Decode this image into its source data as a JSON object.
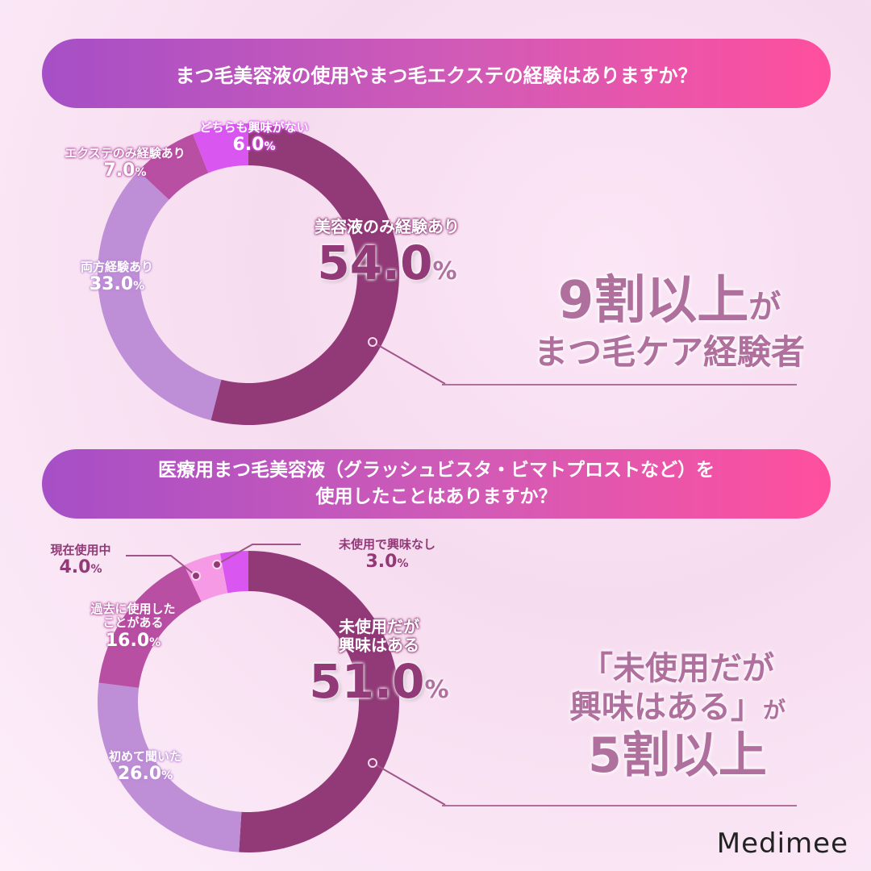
{
  "colors": {
    "dark": "#923A78",
    "light_purple": "#BE8ED6",
    "mid": "#B84FA3",
    "bright": "#D957F0",
    "pink": "#F79AE6",
    "banner_start": "#A64FC6",
    "banner_end": "#FF4F9E",
    "callout": "#B0709E"
  },
  "chart_data": [
    {
      "type": "pie",
      "donut": true,
      "title": "まつ毛美容液の使用やまつ毛エクステの経験はありますか？",
      "categories": [
        "美容液のみ経験あり",
        "両方経験あり",
        "エクステのみ経験あり",
        "どちらも興味がない"
      ],
      "values": [
        54.0,
        33.0,
        7.0,
        6.0
      ],
      "value_labels": [
        "54.0",
        "33.0",
        "7.0",
        "6.0"
      ],
      "unit": "%",
      "colors": [
        "#923A78",
        "#BE8ED6",
        "#B84FA3",
        "#D957F0"
      ]
    },
    {
      "type": "pie",
      "donut": true,
      "title_lines": [
        "医療用まつ毛美容液（グラッシュビスタ・ビマトプロストなど）を",
        "使用したことはありますか？"
      ],
      "categories": [
        "未使用だが興味はある",
        "初めて聞いた",
        "過去に使用したことがある",
        "現在使用中",
        "未使用で興味なし"
      ],
      "label_lines": [
        [
          "未使用だが",
          "興味はある"
        ],
        [
          "初めて聞いた"
        ],
        [
          "過去に使用した",
          "ことがある"
        ],
        [
          "現在使用中"
        ],
        [
          "未使用で興味なし"
        ]
      ],
      "values": [
        51.0,
        26.0,
        16.0,
        4.0,
        3.0
      ],
      "value_labels": [
        "51.0",
        "26.0",
        "16.0",
        "4.0",
        "3.0"
      ],
      "unit": "%",
      "colors": [
        "#923A78",
        "#BE8ED6",
        "#B84FA3",
        "#F79AE6",
        "#D957F0"
      ]
    }
  ],
  "callouts": [
    {
      "line1_big": "9割以上",
      "line1_small": "が",
      "line2": "まつ毛ケア経験者"
    },
    {
      "line1": "「未使用だが",
      "line2_big": "興味はある」",
      "line2_small": "が",
      "line3": "5割以上"
    }
  ],
  "brand": "Medimee"
}
